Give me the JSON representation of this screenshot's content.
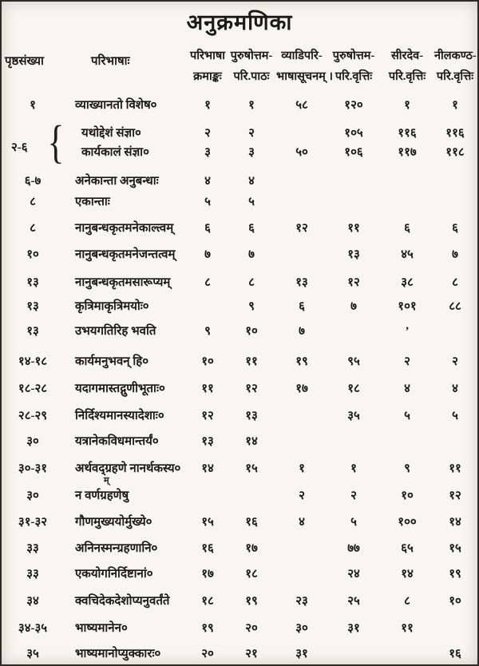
{
  "title": "अनुक्रमणिका",
  "header": {
    "page_col": "पृष्ठसंख्या",
    "paribhasha_col": "परिभाषाः",
    "columns": [
      {
        "line1": "परिभाषा",
        "line2": "क्रमाङ्कः"
      },
      {
        "line1": "पुरुषोत्तम-",
        "line2": "परि.पाठः"
      },
      {
        "line1": "व्याडिपरि-",
        "line2": "भाषासूचनम् ।"
      },
      {
        "line1": "पुरुषोत्तम-",
        "line2": "परि.वृत्तिः"
      },
      {
        "line1": "सीरदेव-",
        "line2": "परि.वृत्तिः"
      },
      {
        "line1": "नीलकण्ठ-",
        "line2": "परि.वृत्तिः"
      }
    ]
  },
  "brace_group": {
    "pages": "२-६"
  },
  "correction_mark": "म्",
  "rows": [
    {
      "pages": "१",
      "text": "व्याख्यानतो विशेष०",
      "values": [
        "१",
        "१",
        "५८",
        "१२०",
        "१",
        "१"
      ]
    },
    {
      "pages": "",
      "text": "यथोद्देशं संज्ञा०",
      "values": [
        "२",
        "२",
        "",
        "१०५",
        "११६",
        "११६"
      ],
      "in_brace": true
    },
    {
      "pages": "",
      "text": "कार्यकालं संज्ञा०",
      "values": [
        "३",
        "३",
        "५०",
        "१०६",
        "११७",
        "११८"
      ],
      "in_brace": true
    },
    {
      "pages": "६-७",
      "text": "अनेकान्ता अनुबन्धाः",
      "values": [
        "४",
        "४",
        "",
        "",
        "",
        ""
      ]
    },
    {
      "pages": "८",
      "text": "एकान्ताः",
      "values": [
        "५",
        "५",
        "",
        "",
        "",
        ""
      ]
    },
    {
      "pages": "८",
      "text": "नानुबन्धकृतमनेकाल्त्वम्",
      "values": [
        "६",
        "६",
        "१२",
        "११",
        "६",
        "६"
      ]
    },
    {
      "pages": "१०",
      "text": "नानुबन्धकृतमनेजन्तत्वम्",
      "values": [
        "७",
        "७",
        "",
        "१३",
        "४५",
        "७"
      ]
    },
    {
      "pages": "१३",
      "text": "नानुबन्धकृतमसारूप्यम्",
      "values": [
        "८",
        "८",
        "१३",
        "१२",
        "३८",
        "८"
      ]
    },
    {
      "pages": "१३",
      "text": "कृत्रिमाकृत्रिमयोः०",
      "values": [
        "",
        "९",
        "६",
        "७",
        "१०१",
        "८८"
      ]
    },
    {
      "pages": "१३",
      "text": "उभयगतिरिह भवति",
      "values": [
        "९",
        "१०",
        "७",
        "",
        "’",
        ""
      ]
    },
    {
      "pages": "१४-१८",
      "text": "कार्यमनुभवन् हि०",
      "values": [
        "१०",
        "११",
        "१९",
        "९५",
        "२",
        "२"
      ]
    },
    {
      "pages": "१८-२८",
      "text": "यदागमास्तद्गुणीभूताः०",
      "values": [
        "११",
        "१२",
        "१७",
        "१८",
        "४",
        "४"
      ]
    },
    {
      "pages": "२८-२९",
      "text": "निर्दिश्यमानस्यादेशाः०",
      "values": [
        "१२",
        "१३",
        "",
        "३५",
        "५",
        "५"
      ]
    },
    {
      "pages": "३०",
      "text": "यत्रानेकविधमान्तर्यं०",
      "values": [
        "१३",
        "१४",
        "",
        "",
        "",
        ""
      ]
    },
    {
      "pages": "३०-३१",
      "text": "अर्थवद्ग्रहणे नानर्थकस्य०",
      "values": [
        "१४",
        "१५",
        "१",
        "१",
        "९",
        "११"
      ]
    },
    {
      "pages": "३०",
      "text": "न वर्णग्रहणेषु",
      "values": [
        "",
        "",
        "२",
        "२",
        "१०",
        "१२"
      ]
    },
    {
      "pages": "३१-३२",
      "text": "गौणमुख्ययोर्मुख्ये०",
      "values": [
        "१५",
        "१६",
        "४",
        "५",
        "१००",
        "१४"
      ]
    },
    {
      "pages": "३३",
      "text": "अनिनस्मन्ग्रहणानि०",
      "values": [
        "१६",
        "१७",
        "",
        "७७",
        "६५",
        "१५"
      ]
    },
    {
      "pages": "३३",
      "text": "एकयोगनिर्दिष्टानां०",
      "values": [
        "१७",
        "१८",
        "",
        "२४",
        "१४",
        "१९"
      ]
    },
    {
      "pages": "३४",
      "text": "क्वचिदेकदेशोप्यनुवर्तंते",
      "values": [
        "१८",
        "१९",
        "२३",
        "२५",
        "८",
        "१०"
      ]
    },
    {
      "pages": "३४-३५",
      "text": "भाष्यमानेन०",
      "values": [
        "१९",
        "२०",
        "३०",
        "३१",
        "११",
        ""
      ]
    },
    {
      "pages": "३५",
      "text": "भाष्यमानोप्युक्कारः०",
      "values": [
        "२०",
        "२१",
        "३१",
        "",
        "",
        "१६"
      ]
    }
  ]
}
